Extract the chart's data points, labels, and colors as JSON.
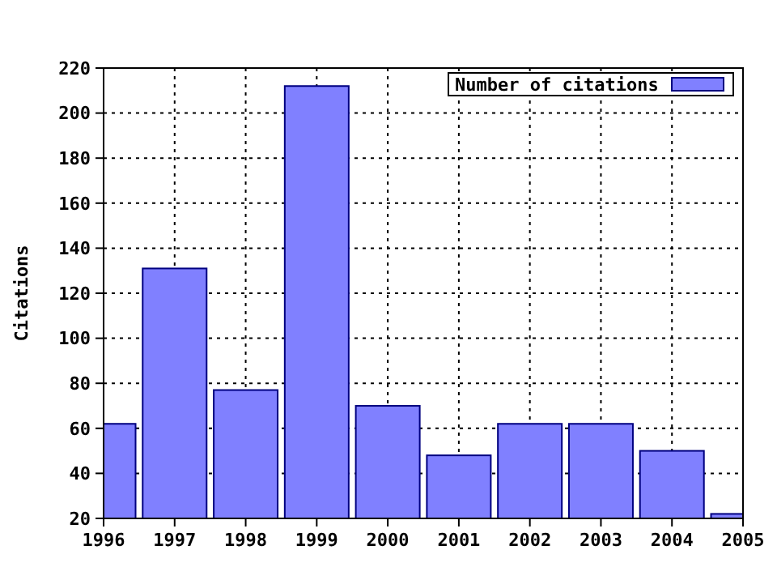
{
  "chart_data": {
    "type": "bar",
    "ylabel": "Citations",
    "x": [
      1996,
      1997,
      1998,
      1999,
      2000,
      2001,
      2002,
      2003,
      2004,
      2005
    ],
    "series": [
      {
        "name": "Number of citations",
        "color": "#8080ff",
        "values": [
          62,
          131,
          77,
          212,
          70,
          48,
          62,
          62,
          50,
          22
        ]
      }
    ],
    "xlim": [
      1996,
      2005
    ],
    "xticks": [
      1996,
      1997,
      1998,
      1999,
      2000,
      2001,
      2002,
      2003,
      2004,
      2005
    ],
    "ylim": [
      20,
      220
    ],
    "yticks": [
      20,
      40,
      60,
      80,
      100,
      120,
      140,
      160,
      180,
      200,
      220
    ],
    "grid": true,
    "legend": "top right"
  }
}
